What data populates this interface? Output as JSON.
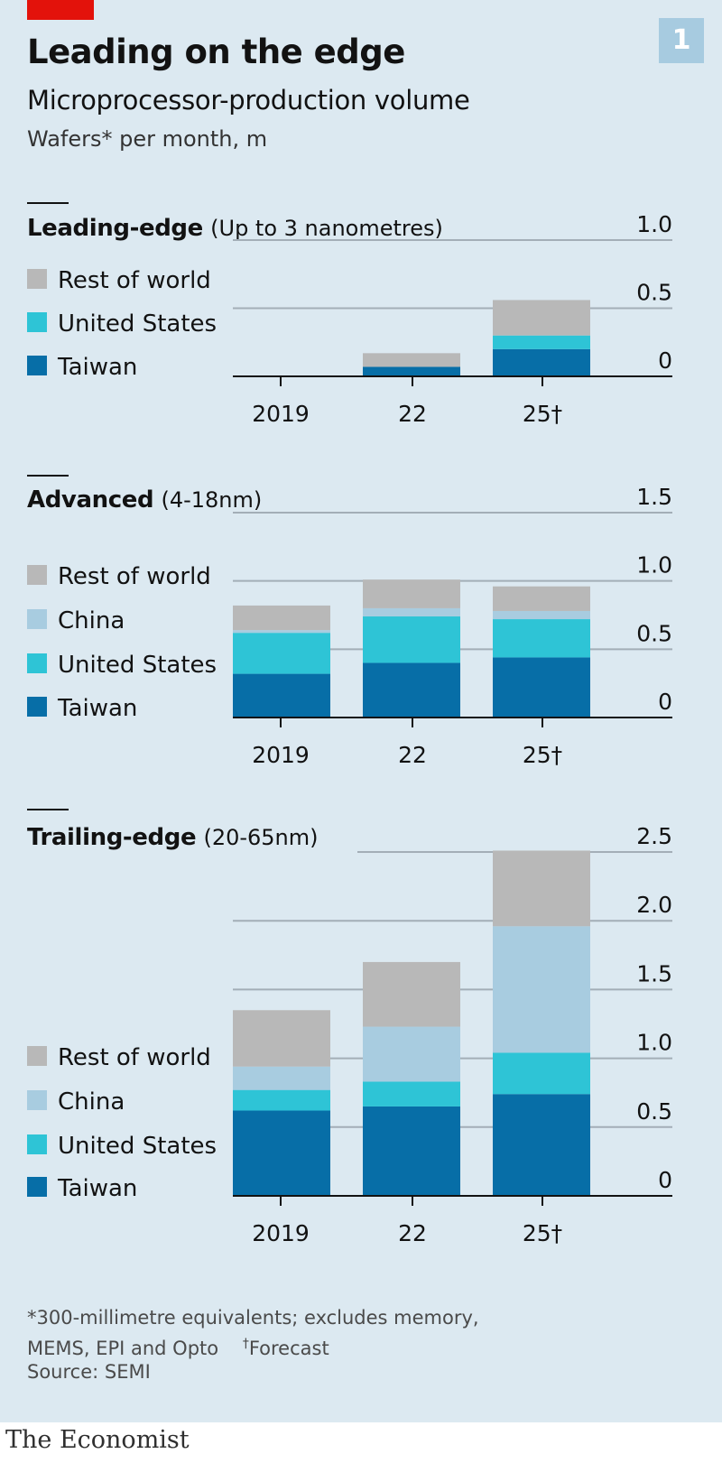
{
  "header": {
    "badge": "1",
    "title": "Leading on the edge",
    "subtitle": "Microprocessor-production volume",
    "unit": "Wafers* per month, m"
  },
  "colors": {
    "rest_of_world": "#b8b8b8",
    "china": "#a8cce0",
    "united_states": "#2ec4d6",
    "taiwan": "#076ea7",
    "gridline": "#a3aeb7",
    "background": "#dce9f1",
    "accent": "#e3120b"
  },
  "footnote": {
    "line1": "*300-millimetre equivalents; excludes memory,",
    "line2": "MEMS, EPI and Opto",
    "dagger": "†",
    "forecast": "Forecast"
  },
  "source": "Source: SEMI",
  "brand": "The Economist",
  "chart_data": [
    {
      "type": "bar",
      "stacked": true,
      "title": "Leading-edge",
      "title_note": "(Up to 3 nanometres)",
      "categories": [
        "2019",
        "22",
        "25†"
      ],
      "ylim": [
        0,
        1.0
      ],
      "yticks": [
        0,
        0.5,
        1.0
      ],
      "ytick_labels": [
        "0",
        "0.5",
        "1.0"
      ],
      "legend": [
        "Rest of world",
        "United States",
        "Taiwan"
      ],
      "series": [
        {
          "name": "Taiwan",
          "key": "taiwan",
          "values": [
            0,
            0.07,
            0.2
          ]
        },
        {
          "name": "United States",
          "key": "united_states",
          "values": [
            0,
            0,
            0.1
          ]
        },
        {
          "name": "Rest of world",
          "key": "rest_of_world",
          "values": [
            0,
            0.1,
            0.26
          ]
        }
      ]
    },
    {
      "type": "bar",
      "stacked": true,
      "title": "Advanced",
      "title_note": "(4-18nm)",
      "categories": [
        "2019",
        "22",
        "25†"
      ],
      "ylim": [
        0,
        1.5
      ],
      "yticks": [
        0,
        0.5,
        1.0,
        1.5
      ],
      "ytick_labels": [
        "0",
        "0.5",
        "1.0",
        "1.5"
      ],
      "legend": [
        "Rest of world",
        "China",
        "United States",
        "Taiwan"
      ],
      "series": [
        {
          "name": "Taiwan",
          "key": "taiwan",
          "values": [
            0.32,
            0.4,
            0.44
          ]
        },
        {
          "name": "United States",
          "key": "united_states",
          "values": [
            0.3,
            0.34,
            0.28
          ]
        },
        {
          "name": "China",
          "key": "china",
          "values": [
            0.02,
            0.06,
            0.06
          ]
        },
        {
          "name": "Rest of world",
          "key": "rest_of_world",
          "values": [
            0.18,
            0.21,
            0.18
          ]
        }
      ]
    },
    {
      "type": "bar",
      "stacked": true,
      "title": "Trailing-edge",
      "title_note": "(20-65nm)",
      "categories": [
        "2019",
        "22",
        "25†"
      ],
      "ylim": [
        0,
        2.5
      ],
      "yticks": [
        0,
        0.5,
        1.0,
        1.5,
        2.0,
        2.5
      ],
      "ytick_labels": [
        "0",
        "0.5",
        "1.0",
        "1.5",
        "2.0",
        "2.5"
      ],
      "legend": [
        "Rest of world",
        "China",
        "United States",
        "Taiwan"
      ],
      "series": [
        {
          "name": "Taiwan",
          "key": "taiwan",
          "values": [
            0.62,
            0.65,
            0.74
          ]
        },
        {
          "name": "United States",
          "key": "united_states",
          "values": [
            0.15,
            0.18,
            0.3
          ]
        },
        {
          "name": "China",
          "key": "china",
          "values": [
            0.17,
            0.4,
            0.92
          ]
        },
        {
          "name": "Rest of world",
          "key": "rest_of_world",
          "values": [
            0.41,
            0.47,
            0.55
          ]
        }
      ]
    }
  ]
}
